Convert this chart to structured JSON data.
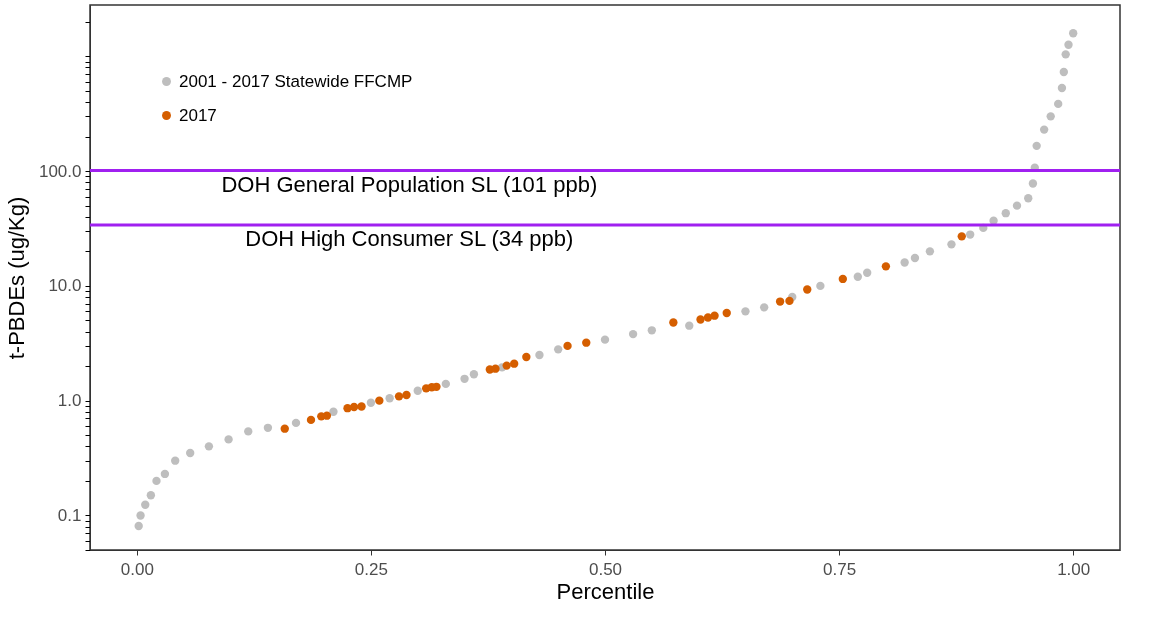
{
  "chart_data": {
    "type": "scatter",
    "xlabel": "Percentile",
    "ylabel": "t-PBDEs  (ug/Kg)",
    "log": "y",
    "grid": false,
    "legend": "top left",
    "marker": "circle",
    "xlim": [
      -0.05,
      1.05
    ],
    "xticks": [
      {
        "value": 0,
        "label": "0.00"
      },
      {
        "value": 0.25,
        "label": "0.25"
      },
      {
        "value": 0.5,
        "label": "0.50"
      },
      {
        "value": 0.75,
        "label": "0.75"
      },
      {
        "value": 1,
        "label": "1.00"
      }
    ],
    "ylim": [
      0.05,
      2800
    ],
    "yticks": [
      {
        "value": 0.05,
        "label": null
      },
      {
        "value": 0.06,
        "label": null
      },
      {
        "value": 0.07,
        "label": null
      },
      {
        "value": 0.08,
        "label": null
      },
      {
        "value": 0.09,
        "label": null
      },
      0.1,
      {
        "value": 0.2,
        "label": null
      },
      {
        "value": 0.3,
        "label": null
      },
      {
        "value": 0.4,
        "label": null
      },
      {
        "value": 0.5,
        "label": null
      },
      {
        "value": 0.6,
        "label": null
      },
      {
        "value": 0.7,
        "label": null
      },
      {
        "value": 0.8,
        "label": null
      },
      {
        "value": 0.9,
        "label": null
      },
      {
        "value": 1,
        "label": "1.0"
      },
      {
        "value": 2,
        "label": null
      },
      {
        "value": 3,
        "label": null
      },
      {
        "value": 4,
        "label": null
      },
      {
        "value": 5,
        "label": null
      },
      {
        "value": 6,
        "label": null
      },
      {
        "value": 7,
        "label": null
      },
      {
        "value": 8,
        "label": null
      },
      {
        "value": 9,
        "label": null
      },
      {
        "value": 10,
        "label": "10.0"
      },
      {
        "value": 20,
        "label": null
      },
      {
        "value": 30,
        "label": null
      },
      {
        "value": 40,
        "label": null
      },
      {
        "value": 50,
        "label": null
      },
      {
        "value": 60,
        "label": null
      },
      {
        "value": 70,
        "label": null
      },
      {
        "value": 80,
        "label": null
      },
      {
        "value": 90,
        "label": null
      },
      {
        "value": 100,
        "label": "100.0"
      },
      {
        "value": 200,
        "label": null
      },
      {
        "value": 300,
        "label": null
      },
      {
        "value": 400,
        "label": null
      },
      {
        "value": 500,
        "label": null
      },
      {
        "value": 600,
        "label": null
      },
      {
        "value": 700,
        "label": null
      },
      {
        "value": 800,
        "label": null
      },
      {
        "value": 900,
        "label": null
      },
      {
        "value": 1000,
        "label": null
      },
      {
        "value": 2000,
        "label": null
      }
    ],
    "ref_lines": [
      {
        "axis": "y",
        "value": 101,
        "label": "DOH General Population SL (101 ppb)",
        "color": "#a020f0"
      },
      {
        "axis": "y",
        "value": 34,
        "label": "DOH High Consumer SL (34 ppb)",
        "color": "#a020f0"
      }
    ],
    "series": [
      {
        "name": "2001 - 2017 Statewide FFCMP",
        "color": "#bebebe",
        "x": [
          0.002,
          0.004,
          0.009,
          0.015,
          0.021,
          0.03,
          0.041,
          0.057,
          0.077,
          0.098,
          0.119,
          0.14,
          0.17,
          0.21,
          0.25,
          0.27,
          0.3,
          0.33,
          0.35,
          0.36,
          0.39,
          0.43,
          0.45,
          0.5,
          0.53,
          0.55,
          0.59,
          0.65,
          0.67,
          0.7,
          0.73,
          0.77,
          0.78,
          0.82,
          0.831,
          0.847,
          0.87,
          0.89,
          0.904,
          0.915,
          0.928,
          0.94,
          0.952,
          0.957,
          0.959,
          0.961,
          0.969,
          0.976,
          0.984,
          0.988,
          0.99,
          0.992,
          0.995,
          1.0
        ],
        "values": [
          0.081,
          0.1,
          0.124,
          0.15,
          0.2,
          0.23,
          0.3,
          0.35,
          0.4,
          0.46,
          0.54,
          0.58,
          0.64,
          0.8,
          0.96,
          1.05,
          1.22,
          1.4,
          1.55,
          1.7,
          1.95,
          2.5,
          2.8,
          3.4,
          3.8,
          4.1,
          4.5,
          6.0,
          6.5,
          8.0,
          10,
          12,
          13,
          16,
          17.5,
          20,
          23,
          28,
          32,
          37,
          43,
          50,
          58,
          78,
          107,
          166,
          230,
          300,
          385,
          530,
          730,
          1040,
          1260,
          1590
        ]
      },
      {
        "name": "2017",
        "color": "#d55e00",
        "x": [
          0.158,
          0.186,
          0.197,
          0.203,
          0.225,
          0.232,
          0.24,
          0.259,
          0.28,
          0.288,
          0.309,
          0.315,
          0.32,
          0.377,
          0.383,
          0.395,
          0.403,
          0.416,
          0.46,
          0.48,
          0.573,
          0.602,
          0.61,
          0.617,
          0.63,
          0.687,
          0.697,
          0.716,
          0.754,
          0.8,
          0.881
        ],
        "values": [
          0.57,
          0.68,
          0.73,
          0.74,
          0.86,
          0.88,
          0.89,
          1.0,
          1.09,
          1.12,
          1.28,
          1.31,
          1.32,
          1.87,
          1.9,
          2.02,
          2.1,
          2.4,
          3.0,
          3.2,
          4.8,
          5.1,
          5.3,
          5.5,
          5.8,
          7.3,
          7.4,
          9.3,
          11.5,
          14.8,
          27
        ]
      }
    ]
  }
}
